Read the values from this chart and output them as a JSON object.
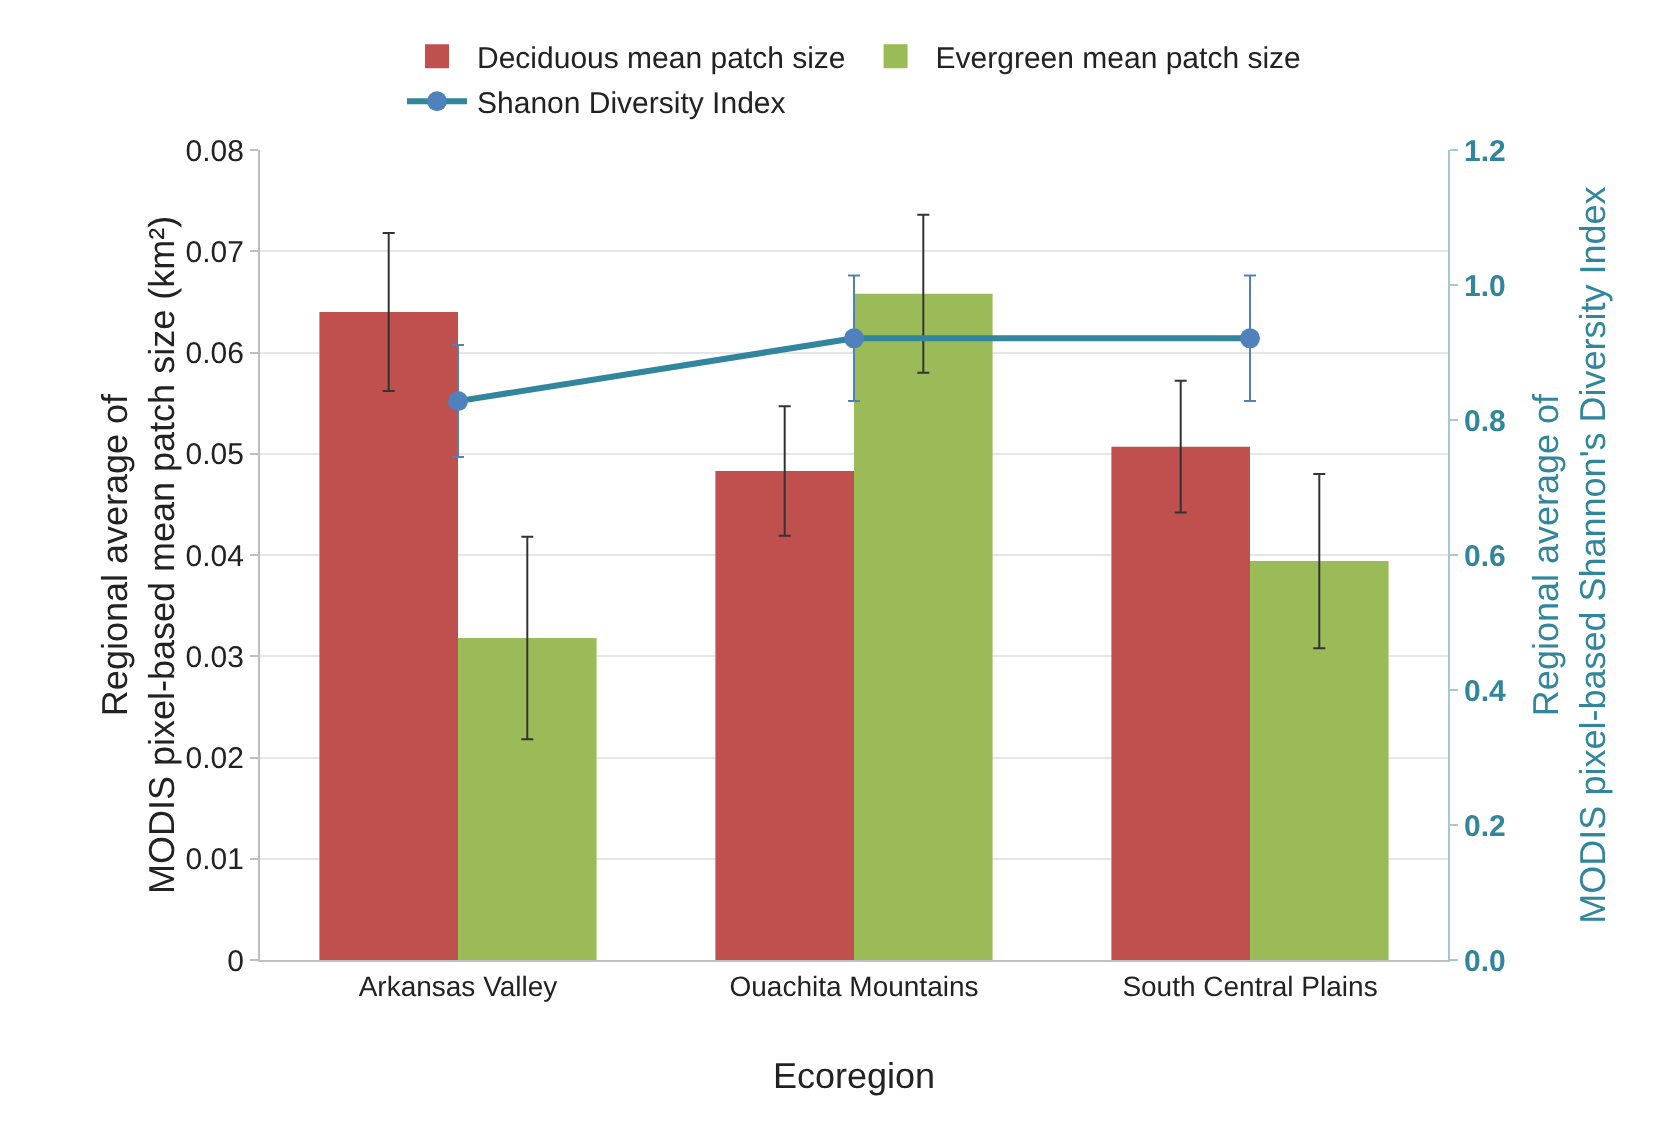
{
  "chart_data": {
    "type": "bar",
    "xlabel": "Ecoregion",
    "ylabel": "Regional average of\nMODIS pixel-based mean patch size (km²)",
    "y2label": "Regional average of\nMODIS pixel-based Shannon's Diversity Index",
    "categories": [
      "Arkansas Valley",
      "Ouachita Mountains",
      "South Central Plains"
    ],
    "series": [
      {
        "name": "Deciduous mean patch size",
        "color": "#c0504d",
        "values": [
          0.064,
          0.0483,
          0.0507
        ],
        "errors": [
          0.0078,
          0.0064,
          0.0065
        ]
      },
      {
        "name": "Evergreen mean patch size",
        "color": "#9bbb59",
        "values": [
          0.0318,
          0.0658,
          0.0394
        ],
        "errors": [
          0.01,
          0.0078,
          0.0086
        ]
      },
      {
        "name": "Shanon Diversity Index",
        "type": "line",
        "axis": "y2",
        "color": "#31859c",
        "marker": "circle",
        "values": [
          0.828,
          0.921,
          0.921
        ],
        "errors": [
          0.083,
          0.093,
          0.093
        ]
      }
    ],
    "ylim": [
      0,
      0.08
    ],
    "yticks": [
      0,
      0.01,
      0.02,
      0.03,
      0.04,
      0.05,
      0.06,
      0.07,
      0.08
    ],
    "y2lim": [
      0,
      1.2
    ],
    "y2ticks": [
      {
        "value": 0,
        "label": "0.0"
      },
      0.2,
      0.4,
      0.6,
      0.8,
      {
        "value": 1,
        "label": "1.0"
      },
      1.2
    ],
    "grid": "y",
    "legend": "top"
  }
}
